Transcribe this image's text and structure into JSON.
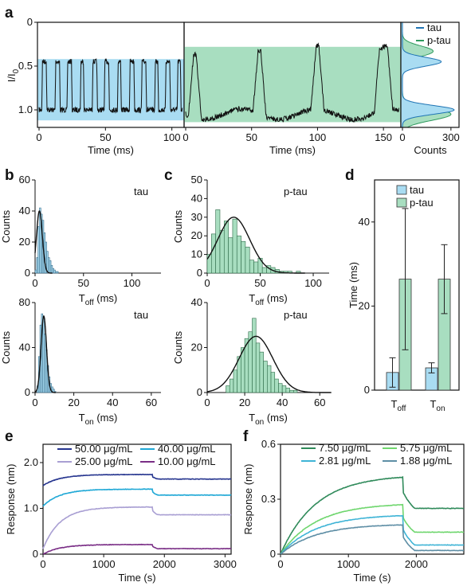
{
  "figure": {
    "panel_letters": [
      "a",
      "b",
      "c",
      "d",
      "e",
      "f"
    ]
  },
  "colors": {
    "tau_fill": "#a9dcf2",
    "tau_line": "#1f74b4",
    "ptau_fill": "#a8dec0",
    "ptau_line": "#2f9a5e",
    "bar_edge": "#333333",
    "trace": "#111111"
  },
  "chart_data": [
    {
      "id": "a-tau",
      "type": "line",
      "xlabel": "Time (ms)",
      "ylabel": "I/I0",
      "ylabel_main": "I/I",
      "ylabel_sub": "0",
      "xlim": [
        0,
        108
      ],
      "ylim": [
        1.2,
        0
      ],
      "xticks": [
        "0",
        "50",
        "100"
      ],
      "yticks": [
        "0",
        "0.5",
        "1.0"
      ],
      "shaded_band": [
        0.42,
        1.12
      ],
      "states": [
        0.45,
        1.0
      ],
      "events": [
        [
          2,
          6
        ],
        [
          12,
          16
        ],
        [
          21,
          25
        ],
        [
          31,
          34
        ],
        [
          40,
          44
        ],
        [
          49,
          53
        ],
        [
          59,
          62
        ],
        [
          68,
          72
        ],
        [
          77,
          81
        ],
        [
          87,
          90
        ],
        [
          95,
          99
        ],
        [
          104,
          107
        ]
      ]
    },
    {
      "id": "a-ptau",
      "type": "line",
      "xlabel": "Time (ms)",
      "xlim": [
        0,
        162
      ],
      "ylim": [
        1.2,
        0
      ],
      "xticks": [
        "0",
        "50",
        "100",
        "150"
      ],
      "shaded_band": [
        0.28,
        1.14
      ],
      "states": [
        0.33,
        1.05
      ],
      "events": [
        [
          2,
          12
        ],
        [
          51,
          61
        ],
        [
          95,
          105
        ],
        [
          143,
          157
        ]
      ]
    },
    {
      "id": "a-hist",
      "type": "histogram",
      "xlabel": "Counts",
      "xlim": [
        0,
        350
      ],
      "xticks": [
        "0",
        "300"
      ],
      "legend": [
        "tau",
        "p-tau"
      ],
      "series": [
        {
          "name": "tau",
          "peaks": [
            {
              "y": 0.45,
              "height": 240,
              "width": 0.05
            },
            {
              "y": 1.0,
              "height": 320,
              "width": 0.05
            }
          ]
        },
        {
          "name": "p-tau",
          "peaks": [
            {
              "y": 0.33,
              "height": 190,
              "width": 0.06
            },
            {
              "y": 1.05,
              "height": 300,
              "width": 0.07
            }
          ]
        }
      ]
    },
    {
      "id": "b-off",
      "type": "histogram",
      "label": "tau",
      "ylabel": "Counts",
      "xlabel_main": "T",
      "xlabel_sub": "off",
      "xlabel_unit": " (ms)",
      "xlim": [
        0,
        130
      ],
      "ylim": [
        0,
        60
      ],
      "xticks": [
        "0",
        "50",
        "100"
      ],
      "yticks": [
        "0",
        "20",
        "40",
        "60"
      ],
      "bin_start": 0,
      "bin_width": 1.5,
      "values": [
        2,
        10,
        30,
        42,
        38,
        34,
        26,
        20,
        14,
        10,
        8,
        5,
        3,
        2,
        1,
        1
      ],
      "fit": {
        "type": "gaussian",
        "mu": 4.5,
        "sigma": 3.0,
        "amp": 40
      }
    },
    {
      "id": "b-on",
      "type": "histogram",
      "label": "tau",
      "ylabel": "Counts",
      "xlabel_main": "T",
      "xlabel_sub": "on",
      "xlabel_unit": " (ms)",
      "xlim": [
        0,
        65
      ],
      "ylim": [
        0,
        80
      ],
      "xticks": [
        "0",
        "20",
        "40",
        "60"
      ],
      "yticks": [
        "0",
        "40",
        "80"
      ],
      "bin_start": 1,
      "bin_width": 0.75,
      "values": [
        6,
        32,
        60,
        70,
        66,
        52,
        38,
        24,
        14,
        8,
        5,
        3,
        1
      ],
      "fit": {
        "type": "gaussian",
        "mu": 4.5,
        "sigma": 1.4,
        "amp": 68
      }
    },
    {
      "id": "c-off",
      "type": "histogram",
      "label": "p-tau",
      "ylabel": "Counts",
      "xlabel_main": "T",
      "xlabel_sub": "off",
      "xlabel_unit": " (ms)",
      "xlim": [
        0,
        115
      ],
      "ylim": [
        0,
        50
      ],
      "xticks": [
        "0",
        "50",
        "100"
      ],
      "yticks": [
        "0",
        "10",
        "20",
        "30",
        "40",
        "50"
      ],
      "bin_start": 0,
      "bin_width": 4,
      "values": [
        10,
        21,
        34,
        23,
        28,
        19,
        29,
        20,
        17,
        14,
        7,
        6,
        8,
        3,
        4,
        3,
        2,
        1,
        1,
        1,
        0,
        1
      ],
      "fit": {
        "type": "gaussian",
        "mu": 25,
        "sigma": 15,
        "amp": 30
      }
    },
    {
      "id": "c-on",
      "type": "histogram",
      "label": "p-tau",
      "ylabel": "Counts",
      "xlabel_main": "T",
      "xlabel_sub": "on",
      "xlabel_unit": " (ms)",
      "xlim": [
        0,
        65
      ],
      "ylim": [
        0,
        40
      ],
      "xticks": [
        "0",
        "20",
        "40",
        "60"
      ],
      "yticks": [
        "0",
        "20",
        "40"
      ],
      "bin_start": 10,
      "bin_width": 2,
      "values": [
        3,
        6,
        10,
        16,
        20,
        24,
        27,
        33,
        22,
        18,
        14,
        12,
        9,
        6,
        4,
        3,
        2,
        1,
        1
      ],
      "fit": {
        "type": "gaussian",
        "mu": 26,
        "sigma": 9,
        "amp": 25
      }
    },
    {
      "id": "d",
      "type": "bar",
      "ylabel": "Time (ms)",
      "ylim": [
        0,
        50
      ],
      "yticks": [
        "0",
        "20",
        "40"
      ],
      "categories": [
        {
          "main": "T",
          "sub": "off"
        },
        {
          "main": "T",
          "sub": "on"
        }
      ],
      "series": [
        {
          "name": "tau",
          "values": [
            4.2,
            5.3
          ],
          "errors": [
            3.5,
            1.2
          ]
        },
        {
          "name": "p-tau",
          "values": [
            26.4,
            26.4
          ],
          "errors": [
            16.8,
            8.2
          ]
        }
      ]
    },
    {
      "id": "e",
      "type": "line",
      "xlabel": "Time (s)",
      "ylabel": "Response (nm)",
      "xlim": [
        0,
        3100
      ],
      "ylim": [
        0,
        2.4
      ],
      "xticks": [
        "0",
        "1000",
        "2000",
        "3000"
      ],
      "yticks": [
        "0",
        "1.0",
        "2.0"
      ],
      "series": [
        {
          "name": "50.00 μg/mL",
          "color": "#26358f",
          "start": 1.5,
          "plateau": 1.74,
          "end": 1.64
        },
        {
          "name": "40.00 μg/mL",
          "color": "#1fa8d6",
          "start": 1.05,
          "plateau": 1.42,
          "end": 1.29
        },
        {
          "name": "25.00 μg/mL",
          "color": "#a99fd3",
          "start": 0.12,
          "plateau": 1.03,
          "end": 0.86
        },
        {
          "name": "10.00 μg/mL",
          "color": "#7a2e86",
          "start": 0.0,
          "plateau": 0.21,
          "end": 0.12
        }
      ]
    },
    {
      "id": "f",
      "type": "line",
      "xlabel": "Time (s)",
      "ylabel": "Response (nm)",
      "xlim": [
        0,
        2700
      ],
      "ylim": [
        0,
        0.6
      ],
      "xticks": [
        "0",
        "1000",
        "2000"
      ],
      "yticks": [
        "0",
        "0.3",
        "0.6"
      ],
      "series": [
        {
          "name": "7.50 μg/mL",
          "color": "#2f8a5a",
          "plateau": 0.42,
          "end": 0.25
        },
        {
          "name": "5.75 μg/mL",
          "color": "#6fd66e",
          "plateau": 0.27,
          "end": 0.12
        },
        {
          "name": "2.81 μg/mL",
          "color": "#3fb4d6",
          "plateau": 0.21,
          "end": 0.05
        },
        {
          "name": "1.88 μg/mL",
          "color": "#5e8ea5",
          "plateau": 0.16,
          "end": 0.02
        }
      ]
    }
  ]
}
